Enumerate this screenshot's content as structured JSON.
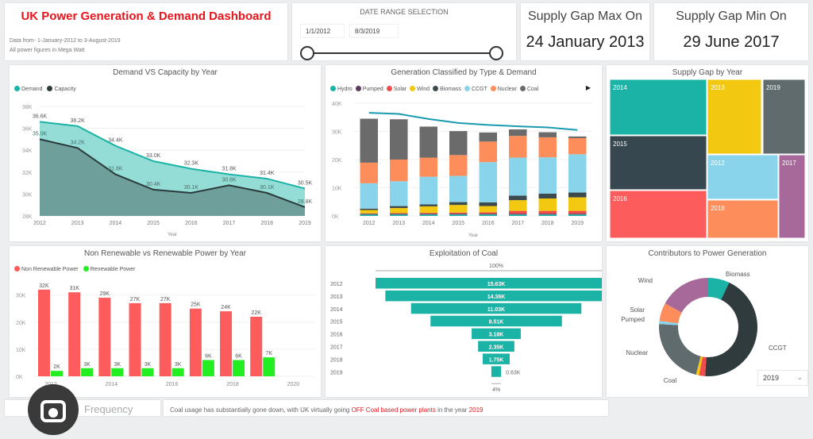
{
  "header": {
    "title": "UK Power Generation & Demand Dashboard",
    "subtitle_line1": "Data from- 1-January-2012 to 3-August-2019",
    "subtitle_line2": "All power figures in Mega Watt",
    "title_color": "#e8141c"
  },
  "date_range": {
    "label": "DATE RANGE SELECTION",
    "start": "1/1/2012",
    "end": "8/3/2019"
  },
  "kpis": [
    {
      "label": "Supply Gap Max On",
      "value": "24 January 2013"
    },
    {
      "label": "Supply Gap Min On",
      "value": "29 June 2017"
    }
  ],
  "footer": {
    "left_text": "Frequency",
    "right_text_prefix": "Coal usage has substantially gone down, with UK virtually going ",
    "right_text_highlight": "OFF Coal based power plants",
    "right_text_mid": " in the year ",
    "right_text_year": "2019"
  },
  "donut_filter": {
    "selected": "2019",
    "icon": "chevron-down-icon"
  },
  "chart_data": [
    {
      "id": "demand_capacity",
      "type": "area",
      "title": "Demand VS Capacity by Year",
      "xlabel": "Year",
      "ylabel": "",
      "x": [
        "2012",
        "2013",
        "2014",
        "2015",
        "2016",
        "2017",
        "2018",
        "2019"
      ],
      "yticks": [
        "28K",
        "30K",
        "32K",
        "34K",
        "36K",
        "38K"
      ],
      "ylim": [
        28000,
        38000
      ],
      "series": [
        {
          "name": "Demand",
          "color": "#1ab3a6",
          "values": [
            36600,
            36200,
            34400,
            33000,
            32300,
            31800,
            31400,
            30500
          ],
          "labels": [
            "36.6K",
            "36.2K",
            "34.4K",
            "33.0K",
            "32.3K",
            "31.8K",
            "31.4K",
            "30.5K"
          ]
        },
        {
          "name": "Capacity",
          "color": "#2b3a3a",
          "values": [
            35000,
            34200,
            31800,
            30400,
            30100,
            30800,
            30100,
            28800
          ],
          "labels": [
            "35.0K",
            "34.2K",
            "31.8K",
            "30.4K",
            "30.1K",
            "30.8K",
            "30.1K",
            "28.8K"
          ]
        }
      ]
    },
    {
      "id": "generation_by_type",
      "type": "bar",
      "stacked": true,
      "title": "Generation Classified by Type & Demand",
      "xlabel": "Year",
      "x": [
        "2012",
        "2013",
        "2014",
        "2015",
        "2016",
        "2017",
        "2018",
        "2019"
      ],
      "yticks": [
        "0K",
        "10K",
        "20K",
        "30K",
        "40K"
      ],
      "ylim": [
        0,
        40000
      ],
      "series": [
        {
          "name": "Hydro",
          "color": "#1ab3a6",
          "values": [
            500,
            500,
            500,
            500,
            500,
            500,
            500,
            500
          ]
        },
        {
          "name": "Pumped",
          "color": "#5c3a5c",
          "values": [
            300,
            300,
            300,
            300,
            300,
            300,
            300,
            300
          ]
        },
        {
          "name": "Solar",
          "color": "#f04c4c",
          "values": [
            100,
            200,
            300,
            400,
            500,
            1000,
            1000,
            1000
          ]
        },
        {
          "name": "Wind",
          "color": "#f2c811",
          "values": [
            1200,
            1800,
            2300,
            2700,
            2200,
            3800,
            4400,
            4800
          ]
        },
        {
          "name": "Biomass",
          "color": "#3d4a4d",
          "values": [
            500,
            700,
            700,
            1000,
            1300,
            1600,
            1700,
            1700
          ]
        },
        {
          "name": "CCGT",
          "color": "#8ad4eb",
          "values": [
            9000,
            8800,
            9800,
            9300,
            14300,
            13500,
            12900,
            13600
          ]
        },
        {
          "name": "Nuclear",
          "color": "#fd8d5a",
          "values": [
            7300,
            7700,
            6800,
            7400,
            7300,
            7700,
            7100,
            5700
          ]
        },
        {
          "name": "Coal",
          "color": "#6b6b6b",
          "values": [
            15600,
            14300,
            11000,
            8500,
            3200,
            2300,
            1800,
            600
          ]
        }
      ],
      "line": {
        "name": "Demand",
        "color": "#1a9bb0",
        "values": [
          36600,
          36200,
          34400,
          33000,
          32300,
          31800,
          31400,
          30500
        ]
      },
      "legend": "top-left"
    },
    {
      "id": "supply_gap_treemap",
      "type": "treemap",
      "title": "Supply Gap by Year",
      "items": [
        {
          "label": "2014",
          "color": "#1ab3a6",
          "value": 15
        },
        {
          "label": "2015",
          "color": "#37474f",
          "value": 15
        },
        {
          "label": "2016",
          "color": "#fd5c5c",
          "value": 15
        },
        {
          "label": "2013",
          "color": "#f2c811",
          "value": 11
        },
        {
          "label": "2019",
          "color": "#5f6b6d",
          "value": 9
        },
        {
          "label": "2012",
          "color": "#8ad4eb",
          "value": 9
        },
        {
          "label": "2018",
          "color": "#fd8d5a",
          "value": 6
        },
        {
          "label": "2017",
          "color": "#a66999",
          "value": 6
        }
      ]
    },
    {
      "id": "renewable_split",
      "type": "bar",
      "title": "Non Renewable vs Renewable Power by Year",
      "x": [
        "2012",
        "2013",
        "2014",
        "2015",
        "2016",
        "2017",
        "2018",
        "2019"
      ],
      "xticks": [
        "2012",
        "2014",
        "2016",
        "2018",
        "2020"
      ],
      "yticks": [
        "0K",
        "10K",
        "20K",
        "30K"
      ],
      "ylim": [
        0,
        34000
      ],
      "series": [
        {
          "name": "Non Renewable Power",
          "color": "#fd5c5c",
          "values": [
            32000,
            31000,
            29000,
            27000,
            27000,
            25000,
            24000,
            22000
          ],
          "labels": [
            "32K",
            "31K",
            "29K",
            "27K",
            "27K",
            "25K",
            "24K",
            "22K"
          ]
        },
        {
          "name": "Renewable Power",
          "color": "#22ee22",
          "values": [
            2000,
            3000,
            3000,
            3000,
            3000,
            6000,
            6000,
            7000
          ],
          "labels": [
            "2K",
            "3K",
            "3K",
            "3K",
            "3K",
            "6K",
            "6K",
            "7K"
          ]
        }
      ]
    },
    {
      "id": "coal_funnel",
      "type": "funnel",
      "title": "Exploitation of Coal",
      "top_label": "100%",
      "bottom_label": "4%",
      "categories": [
        "2012",
        "2013",
        "2014",
        "2015",
        "2016",
        "2017",
        "2018",
        "2019"
      ],
      "values": [
        15630,
        14360,
        11030,
        8510,
        3180,
        2350,
        1750,
        630
      ],
      "labels": [
        "15.63K",
        "14.36K",
        "11.03K",
        "8.51K",
        "3.18K",
        "2.35K",
        "1.75K",
        "0.63K"
      ],
      "color": "#1ab3a6"
    },
    {
      "id": "contributors_donut",
      "type": "pie",
      "donut": true,
      "title": "Contributors to Power Generation",
      "categories": [
        "Biomass",
        "CCGT",
        "Coal",
        "Solar-red",
        "Nuclear",
        "Pumped",
        "Solar",
        "Wind"
      ],
      "slices": [
        {
          "name": "Biomass",
          "color": "#1ab3a6",
          "value": 7
        },
        {
          "name": "CCGT",
          "color": "#2f3b3d",
          "value": 44
        },
        {
          "name": "",
          "color": "#f04c4c",
          "value": 2
        },
        {
          "name": "Coal",
          "color": "#f2c811",
          "value": 1
        },
        {
          "name": "Nuclear",
          "color": "#5f6b6d",
          "value": 22
        },
        {
          "name": "Pumped",
          "color": "#8ad4eb",
          "value": 1
        },
        {
          "name": "Solar",
          "color": "#fd8d5a",
          "value": 6
        },
        {
          "name": "Wind",
          "color": "#a66999",
          "value": 17
        }
      ]
    }
  ]
}
